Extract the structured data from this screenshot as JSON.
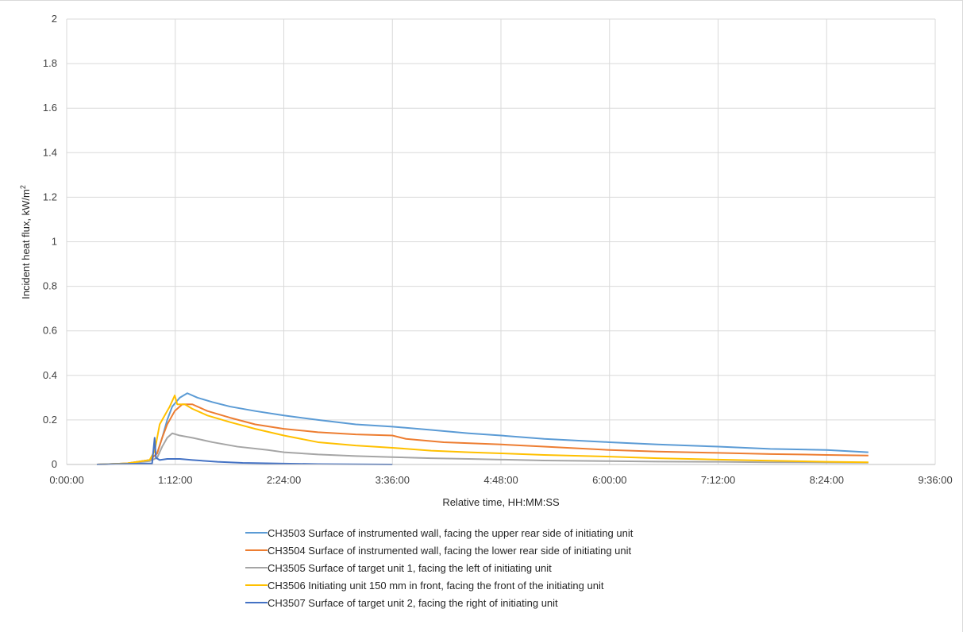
{
  "chart_data": {
    "type": "line",
    "title": "",
    "xlabel": "Relative time, HH:MM:SS",
    "ylabel": "Incident heat flux, kW/m",
    "ylabel_superscript": "2",
    "x_unit": "seconds",
    "xlim": [
      0,
      34560
    ],
    "ylim": [
      0,
      2
    ],
    "x_ticks": [
      {
        "value": 0,
        "label": "0:00:00"
      },
      {
        "value": 4320,
        "label": "1:12:00"
      },
      {
        "value": 8640,
        "label": "2:24:00"
      },
      {
        "value": 12960,
        "label": "3:36:00"
      },
      {
        "value": 17280,
        "label": "4:48:00"
      },
      {
        "value": 21600,
        "label": "6:00:00"
      },
      {
        "value": 25920,
        "label": "7:12:00"
      },
      {
        "value": 30240,
        "label": "8:24:00"
      },
      {
        "value": 34560,
        "label": "9:36:00"
      }
    ],
    "y_ticks": [
      {
        "value": 0,
        "label": "0"
      },
      {
        "value": 0.2,
        "label": "0.2"
      },
      {
        "value": 0.4,
        "label": "0.4"
      },
      {
        "value": 0.6,
        "label": "0.6"
      },
      {
        "value": 0.8,
        "label": "0.8"
      },
      {
        "value": 1,
        "label": "1"
      },
      {
        "value": 1.2,
        "label": "1.2"
      },
      {
        "value": 1.4,
        "label": "1.4"
      },
      {
        "value": 1.6,
        "label": "1.6"
      },
      {
        "value": 1.8,
        "label": "1.8"
      },
      {
        "value": 2,
        "label": "2"
      }
    ],
    "grid": true,
    "legend_position": "bottom",
    "series": [
      {
        "name": "CH3503 Surface of instrumented wall, facing the upper rear side of initiating unit",
        "color": "#5b9bd5",
        "points": [
          [
            1200,
            0
          ],
          [
            2400,
            0.005
          ],
          [
            3300,
            0.02
          ],
          [
            3600,
            0.05
          ],
          [
            3800,
            0.12
          ],
          [
            4000,
            0.2
          ],
          [
            4200,
            0.26
          ],
          [
            4500,
            0.3
          ],
          [
            4800,
            0.32
          ],
          [
            5200,
            0.3
          ],
          [
            5800,
            0.28
          ],
          [
            6500,
            0.26
          ],
          [
            7500,
            0.24
          ],
          [
            8640,
            0.22
          ],
          [
            10000,
            0.2
          ],
          [
            11500,
            0.18
          ],
          [
            12960,
            0.17
          ],
          [
            14500,
            0.155
          ],
          [
            16000,
            0.14
          ],
          [
            17280,
            0.13
          ],
          [
            19000,
            0.115
          ],
          [
            21600,
            0.1
          ],
          [
            23500,
            0.09
          ],
          [
            25920,
            0.08
          ],
          [
            28000,
            0.07
          ],
          [
            30240,
            0.065
          ],
          [
            31900,
            0.055
          ]
        ]
      },
      {
        "name": "CH3504 Surface of instrumented wall, facing the lower rear side of initiating unit",
        "color": "#ed7d31",
        "points": [
          [
            1200,
            0
          ],
          [
            2400,
            0.005
          ],
          [
            3300,
            0.02
          ],
          [
            3600,
            0.05
          ],
          [
            3800,
            0.12
          ],
          [
            4000,
            0.18
          ],
          [
            4300,
            0.24
          ],
          [
            4600,
            0.27
          ],
          [
            5000,
            0.27
          ],
          [
            5600,
            0.24
          ],
          [
            6500,
            0.21
          ],
          [
            7500,
            0.18
          ],
          [
            8640,
            0.16
          ],
          [
            10000,
            0.145
          ],
          [
            11500,
            0.135
          ],
          [
            12960,
            0.13
          ],
          [
            13500,
            0.115
          ],
          [
            15000,
            0.1
          ],
          [
            17280,
            0.09
          ],
          [
            19000,
            0.08
          ],
          [
            21600,
            0.065
          ],
          [
            23500,
            0.058
          ],
          [
            25920,
            0.052
          ],
          [
            28000,
            0.047
          ],
          [
            30240,
            0.043
          ],
          [
            31900,
            0.04
          ]
        ]
      },
      {
        "name": "CH3505 Surface of target unit 1, facing the left of initiating unit",
        "color": "#a5a5a5",
        "points": [
          [
            1200,
            0
          ],
          [
            2400,
            0.004
          ],
          [
            3300,
            0.015
          ],
          [
            3600,
            0.03
          ],
          [
            3800,
            0.08
          ],
          [
            4000,
            0.12
          ],
          [
            4200,
            0.14
          ],
          [
            4500,
            0.13
          ],
          [
            5000,
            0.12
          ],
          [
            5800,
            0.1
          ],
          [
            6800,
            0.08
          ],
          [
            8000,
            0.065
          ],
          [
            8640,
            0.055
          ],
          [
            10000,
            0.045
          ],
          [
            11500,
            0.038
          ],
          [
            12960,
            0.033
          ],
          [
            14500,
            0.028
          ],
          [
            16000,
            0.025
          ],
          [
            17280,
            0.022
          ],
          [
            19000,
            0.018
          ],
          [
            21600,
            0.015
          ],
          [
            23500,
            0.013
          ],
          [
            25920,
            0.012
          ],
          [
            28000,
            0.01
          ],
          [
            30240,
            0.009
          ],
          [
            31900,
            0.008
          ]
        ]
      },
      {
        "name": "CH3506 Initiating unit 150 mm in front, facing the front  of the initiating unit",
        "color": "#ffc000",
        "points": [
          [
            1200,
            0
          ],
          [
            2400,
            0.005
          ],
          [
            3300,
            0.02
          ],
          [
            3500,
            0.06
          ],
          [
            3700,
            0.18
          ],
          [
            3900,
            0.22
          ],
          [
            4100,
            0.26
          ],
          [
            4300,
            0.31
          ],
          [
            4400,
            0.27
          ],
          [
            4700,
            0.27
          ],
          [
            5000,
            0.25
          ],
          [
            5600,
            0.22
          ],
          [
            6500,
            0.19
          ],
          [
            7500,
            0.16
          ],
          [
            8640,
            0.13
          ],
          [
            10000,
            0.1
          ],
          [
            11500,
            0.085
          ],
          [
            12960,
            0.075
          ],
          [
            14500,
            0.062
          ],
          [
            16000,
            0.055
          ],
          [
            17280,
            0.05
          ],
          [
            19000,
            0.043
          ],
          [
            21600,
            0.035
          ],
          [
            23500,
            0.028
          ],
          [
            25920,
            0.022
          ],
          [
            28000,
            0.017
          ],
          [
            30240,
            0.012
          ],
          [
            31900,
            0.01
          ]
        ]
      },
      {
        "name": "CH3507 Surface of target unit 2, facing the right of initiating unit",
        "color": "#4472c4",
        "points": [
          [
            1200,
            0
          ],
          [
            3400,
            0.005
          ],
          [
            3500,
            0.12
          ],
          [
            3550,
            0.03
          ],
          [
            3700,
            0.02
          ],
          [
            4000,
            0.025
          ],
          [
            4500,
            0.025
          ],
          [
            5000,
            0.02
          ],
          [
            6000,
            0.012
          ],
          [
            7000,
            0.007
          ],
          [
            8640,
            0.004
          ],
          [
            10000,
            0.002
          ],
          [
            11500,
            0.001
          ],
          [
            12960,
            0.0
          ]
        ]
      }
    ]
  }
}
